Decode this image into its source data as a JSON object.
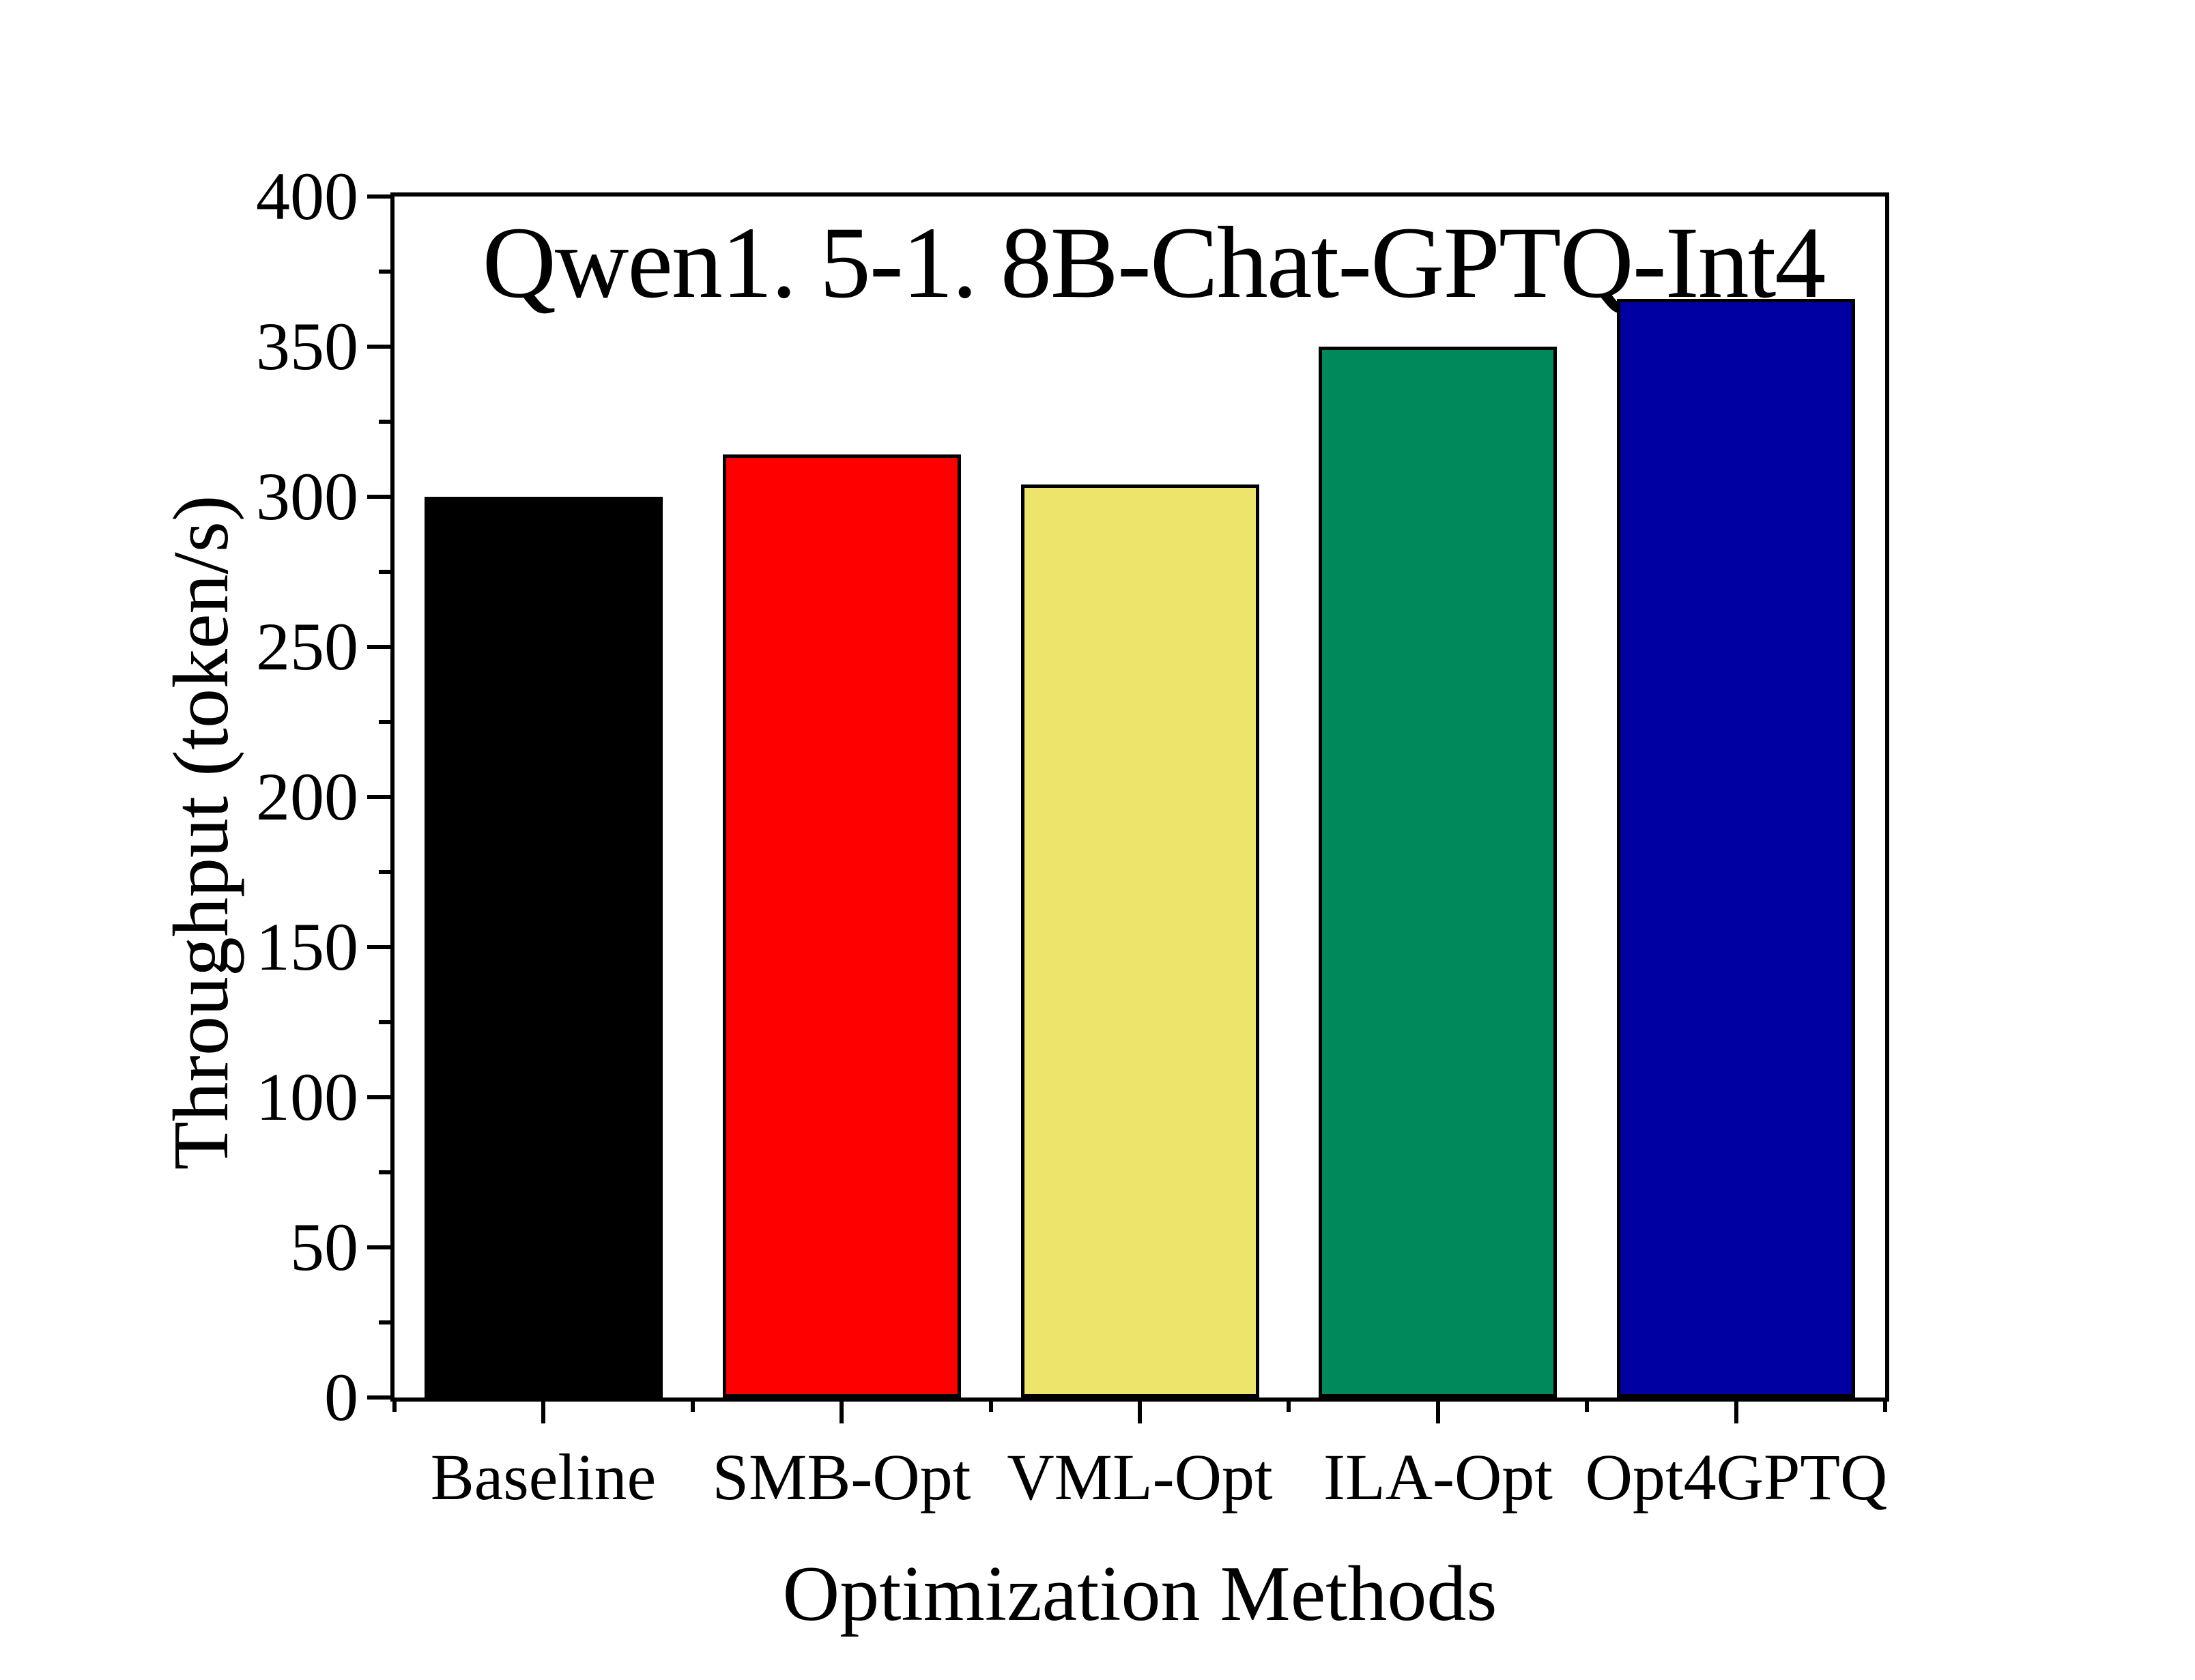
{
  "figure": {
    "background_color": "#ffffff",
    "text_color": "#000000",
    "axis_color": "#000000"
  },
  "chart_data": {
    "type": "bar",
    "title": "Qwen1. 5-1. 8B-Chat-GPTQ-Int4",
    "xlabel": "Optimization Methods",
    "ylabel": "Throughput (token/s)",
    "categories": [
      "Baseline",
      "SMB-Opt",
      "VML-Opt",
      "ILA-Opt",
      "Opt4GPTQ"
    ],
    "values": [
      300,
      314,
      304,
      350,
      366
    ],
    "bar_colors": [
      "#000000",
      "#ff0000",
      "#ede46c",
      "#008a5c",
      "#0000a2"
    ],
    "bar_edge_color": "#000000",
    "ylim": [
      0,
      400
    ],
    "yticks": [
      0,
      50,
      100,
      150,
      200,
      250,
      300,
      350,
      400
    ],
    "ytick_minor_step": 25,
    "bar_width_fraction": 0.8,
    "grid": false,
    "legend": "none"
  }
}
